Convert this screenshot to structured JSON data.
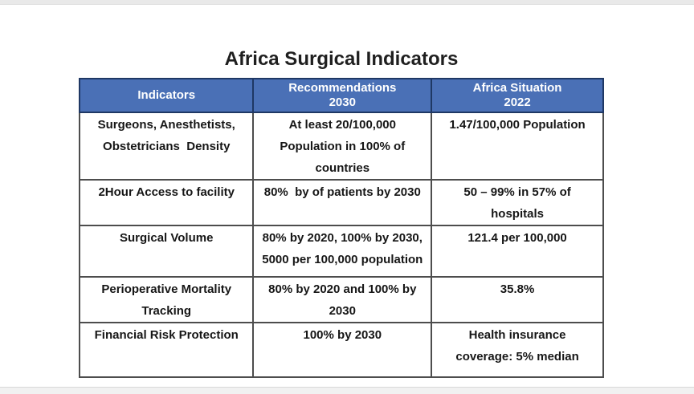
{
  "page": {
    "title": "Africa Surgical Indicators"
  },
  "colors": {
    "header_bg": "#4A70B6",
    "header_text": "#FFFFFF",
    "header_border": "#1F3864",
    "grid_border": "#4D4D4D",
    "body_text": "#161616",
    "top_strip": "#E9E9E9",
    "bottom_strip": "#F1F1F1"
  },
  "table": {
    "headers": [
      {
        "lines": [
          "Indicators"
        ]
      },
      {
        "lines": [
          "Recommendations",
          "2030"
        ]
      },
      {
        "lines": [
          "Africa Situation",
          "2022"
        ]
      }
    ],
    "rows": [
      {
        "cells": [
          {
            "lines": [
              "Surgeons, Anesthetists,",
              "Obstetricians  Density"
            ]
          },
          {
            "lines": [
              "At least 20/100,000",
              "Population in 100% of",
              "countries"
            ]
          },
          {
            "lines": [
              "1.47/100,000 Population"
            ]
          }
        ]
      },
      {
        "cells": [
          {
            "lines": [
              "2Hour Access to facility"
            ]
          },
          {
            "lines": [
              "80%  by of patients by 2030"
            ]
          },
          {
            "lines": [
              "50 – 99% in 57% of",
              "hospitals"
            ]
          }
        ]
      },
      {
        "cells": [
          {
            "lines": [
              "Surgical Volume"
            ]
          },
          {
            "lines": [
              "80% by 2020, 100% by 2030,",
              "5000 per 100,000 population"
            ]
          },
          {
            "lines": [
              "121.4 per 100,000"
            ]
          }
        ]
      },
      {
        "cells": [
          {
            "lines": [
              "Perioperative Mortality",
              "Tracking"
            ]
          },
          {
            "lines": [
              "80% by 2020 and 100% by",
              "2030"
            ]
          },
          {
            "lines": [
              "35.8%"
            ]
          }
        ]
      },
      {
        "cells": [
          {
            "lines": [
              "Financial Risk Protection"
            ]
          },
          {
            "lines": [
              "100% by 2030"
            ]
          },
          {
            "lines": [
              "Health insurance",
              "coverage: 5% median"
            ]
          }
        ]
      }
    ]
  }
}
